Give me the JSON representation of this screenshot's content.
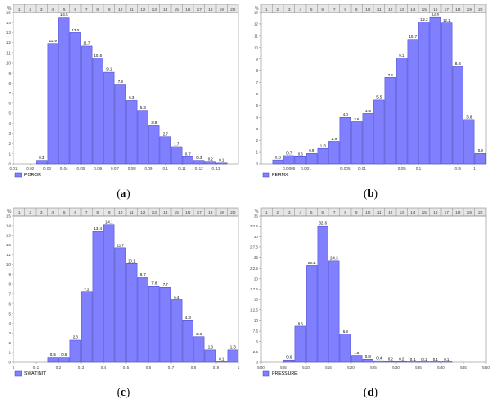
{
  "bin_labels": [
    "1",
    "2",
    "3",
    "4",
    "5",
    "6",
    "7",
    "8",
    "9",
    "10",
    "11",
    "12",
    "13",
    "14",
    "15",
    "16",
    "17",
    "18",
    "19",
    "20"
  ],
  "y_unit": "%",
  "colors": {
    "bar": "#8080ff",
    "bar_stroke": "#3c3ccc",
    "frame": "#8a8a8a",
    "header_fill": "#e6e6e6"
  },
  "captions": [
    "a",
    "b",
    "c",
    "d"
  ],
  "chart_data": [
    {
      "type": "bar",
      "legend": "POROR",
      "values": [
        0,
        0,
        0.3,
        11.9,
        14.5,
        13.0,
        11.7,
        10.5,
        9.1,
        7.9,
        6.3,
        5.3,
        3.8,
        2.7,
        1.7,
        0.7,
        0.3,
        0.2,
        0.1,
        0
      ],
      "value_labels": [
        "",
        "",
        "0.3",
        "11.9",
        "14.5",
        "13.0",
        "11.7",
        "10.5",
        "9.1",
        "7.9",
        "6.3",
        "5.3",
        "3.8",
        "2.7",
        "1.7",
        "0.7",
        "0.3",
        "0.2",
        "0.1",
        ""
      ],
      "ylim": [
        0,
        15
      ],
      "yticks": [
        "0",
        "1",
        "2",
        "3",
        "4",
        "5",
        "6",
        "7",
        "8",
        "9",
        "10",
        "11",
        "12",
        "13",
        "14",
        "15"
      ],
      "xticks": [
        {
          "label": "0.01",
          "bin": 0
        },
        {
          "label": "0.02",
          "bin": 1.5
        },
        {
          "label": "0.03",
          "bin": 3
        },
        {
          "label": "0.04",
          "bin": 4.5
        },
        {
          "label": "0.05",
          "bin": 6
        },
        {
          "label": "0.06",
          "bin": 7.5
        },
        {
          "label": "0.07",
          "bin": 9
        },
        {
          "label": "0.08",
          "bin": 10.5
        },
        {
          "label": "0.09",
          "bin": 12
        },
        {
          "label": "0.1",
          "bin": 13.5
        },
        {
          "label": "0.11",
          "bin": 15
        },
        {
          "label": "0.12",
          "bin": 16.5
        },
        {
          "label": "0.13",
          "bin": 18
        }
      ]
    },
    {
      "type": "bar",
      "legend": "PERMX",
      "values": [
        0,
        0.3,
        0.7,
        0.6,
        0.9,
        1.3,
        1.9,
        4.0,
        3.6,
        4.3,
        5.5,
        7.4,
        9.1,
        10.7,
        12.2,
        12.6,
        12.1,
        8.4,
        3.8,
        0.9
      ],
      "value_labels": [
        "",
        "0.3",
        "0.7",
        "0.6",
        "0.9",
        "1.3",
        "1.9",
        "4.0",
        "3.6",
        "4.3",
        "5.5",
        "7.4",
        "9.1",
        "10.7",
        "12.2",
        "12.6",
        "12.1",
        "8.4",
        "3.8",
        "0.9"
      ],
      "ylim": [
        0,
        13
      ],
      "yticks": [
        "0",
        "1",
        "2",
        "3",
        "4",
        "5",
        "6",
        "7",
        "8",
        "9",
        "10",
        "11",
        "12",
        "13"
      ],
      "xticks": [
        {
          "label": "0.0005",
          "bin": 2.5
        },
        {
          "label": "0.001",
          "bin": 4
        },
        {
          "label": "0.005",
          "bin": 7.5
        },
        {
          "label": "0.01",
          "bin": 9
        },
        {
          "label": "0.05",
          "bin": 12.5
        },
        {
          "label": "0.1",
          "bin": 14
        },
        {
          "label": "0.5",
          "bin": 17.5
        },
        {
          "label": "1",
          "bin": 19
        }
      ]
    },
    {
      "type": "bar",
      "legend": "SWATINIT",
      "values": [
        0,
        0,
        0,
        0.5,
        0.5,
        2.3,
        7.2,
        13.4,
        14.1,
        11.7,
        10.1,
        8.7,
        7.8,
        7.7,
        6.4,
        4.3,
        2.6,
        1.3,
        0.1,
        1.3
      ],
      "value_labels": [
        "",
        "",
        "",
        "0.5",
        "0.5",
        "2.3",
        "7.2",
        "13.4",
        "14.1",
        "11.7",
        "10.1",
        "8.7",
        "7.8",
        "7.7",
        "6.4",
        "4.3",
        "2.6",
        "1.3",
        "0.1",
        "1.3"
      ],
      "ylim": [
        0,
        15
      ],
      "yticks": [
        "0",
        "1",
        "2",
        "3",
        "4",
        "5",
        "6",
        "7",
        "8",
        "9",
        "10",
        "11",
        "12",
        "13",
        "14",
        "15"
      ],
      "xticks": [
        {
          "label": "0",
          "bin": 0
        },
        {
          "label": "0.1",
          "bin": 2
        },
        {
          "label": "0.2",
          "bin": 4
        },
        {
          "label": "0.3",
          "bin": 6
        },
        {
          "label": "0.4",
          "bin": 8
        },
        {
          "label": "0.5",
          "bin": 10
        },
        {
          "label": "0.6",
          "bin": 12
        },
        {
          "label": "0.7",
          "bin": 14
        },
        {
          "label": "0.8",
          "bin": 16
        },
        {
          "label": "0.9",
          "bin": 18
        },
        {
          "label": "1",
          "bin": 20
        }
      ]
    },
    {
      "type": "bar",
      "legend": "PRESSURE",
      "values": [
        0,
        0,
        0.6,
        8.6,
        23.1,
        32.6,
        24.3,
        6.8,
        1.6,
        0.8,
        0.4,
        0.2,
        0.2,
        0.1,
        0.1,
        0.1,
        0.1,
        0,
        0,
        0
      ],
      "value_labels": [
        "",
        "",
        "0.6",
        "8.6",
        "23.1",
        "32.6",
        "24.3",
        "6.8",
        "1.6",
        "0.8",
        "0.4",
        "0.2",
        "0.2",
        "0.1",
        "0.1",
        "0.1",
        "0.1",
        "",
        "",
        ""
      ],
      "ylim": [
        0,
        35
      ],
      "yticks": [
        "0",
        "2.5",
        "5",
        "7.5",
        "10",
        "12.5",
        "15",
        "17.5",
        "20",
        "22.5",
        "25",
        "27.5",
        "30",
        "32.5",
        "35"
      ],
      "xticks": [
        {
          "label": "500",
          "bin": 0
        },
        {
          "label": "505",
          "bin": 2
        },
        {
          "label": "510",
          "bin": 4
        },
        {
          "label": "515",
          "bin": 6
        },
        {
          "label": "520",
          "bin": 8
        },
        {
          "label": "525",
          "bin": 10
        },
        {
          "label": "530",
          "bin": 12
        },
        {
          "label": "535",
          "bin": 14
        },
        {
          "label": "540",
          "bin": 16
        },
        {
          "label": "545",
          "bin": 18
        },
        {
          "label": "550",
          "bin": 20
        }
      ]
    }
  ]
}
